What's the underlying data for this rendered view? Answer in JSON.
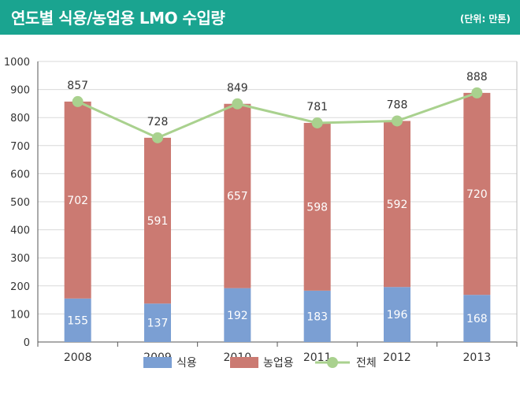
{
  "header": {
    "title": "연도별 식용/농업용 LMO 수입량",
    "unit": "(단위: 만톤)"
  },
  "chart_data": {
    "type": "bar",
    "stacked": true,
    "categories": [
      "2008",
      "2009",
      "2010",
      "2011",
      "2012",
      "2013"
    ],
    "ylim": [
      0,
      1000
    ],
    "yticks": [
      0,
      100,
      200,
      300,
      400,
      500,
      600,
      700,
      800,
      900,
      1000
    ],
    "grid": true,
    "legend": "bottom",
    "series": [
      {
        "name": "식용",
        "type": "bar",
        "color": "#7b9fd3",
        "values": [
          155,
          137,
          192,
          183,
          196,
          168
        ]
      },
      {
        "name": "농업용",
        "type": "bar",
        "color": "#cb7a72",
        "values": [
          702,
          591,
          657,
          598,
          592,
          720
        ]
      },
      {
        "name": "전체",
        "type": "line",
        "color": "#a9d18e",
        "values": [
          857,
          728,
          849,
          781,
          788,
          888
        ]
      }
    ]
  }
}
